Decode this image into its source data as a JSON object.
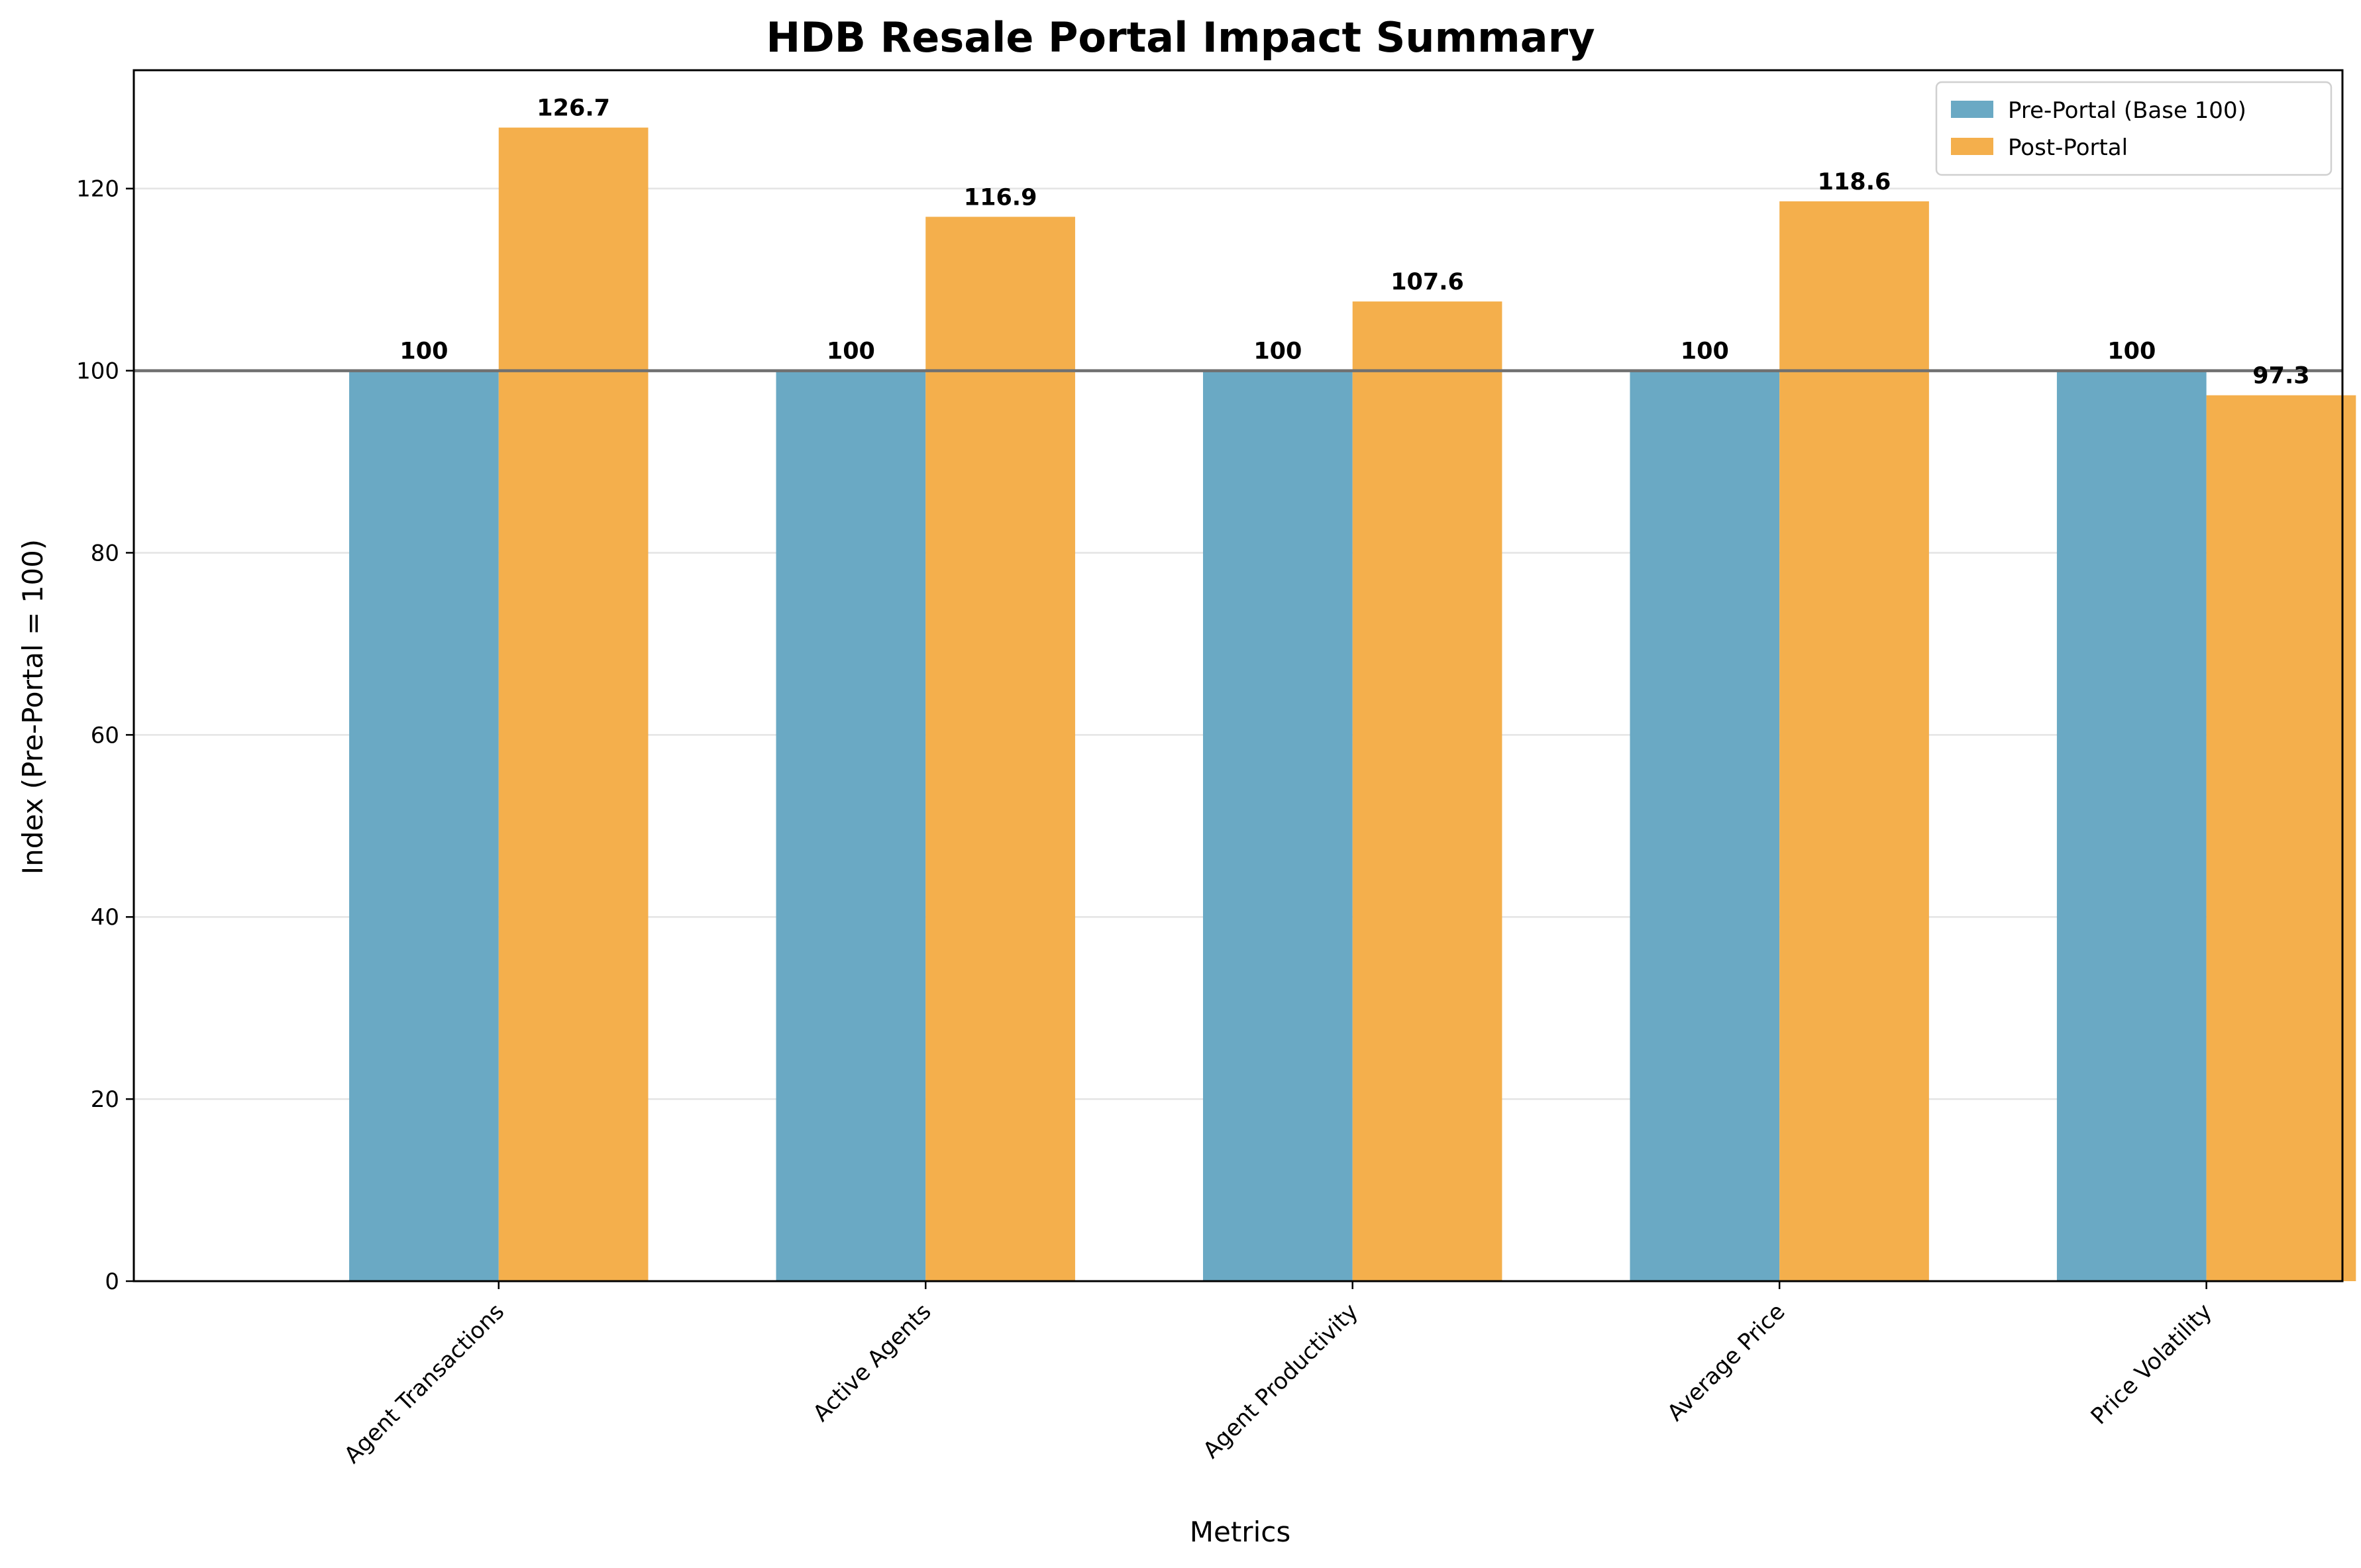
{
  "chart_data": {
    "type": "bar",
    "title": "HDB Resale Portal Impact Summary",
    "xlabel": "Metrics",
    "ylabel": "Index (Pre-Portal = 100)",
    "categories": [
      "Agent Transactions",
      "Active Agents",
      "Agent Productivity",
      "Average Price",
      "Price Volatility"
    ],
    "series": [
      {
        "name": "Pre-Portal (Base 100)",
        "values": [
          100,
          100,
          100,
          100,
          100
        ],
        "labels": [
          "100",
          "100",
          "100",
          "100",
          "100"
        ],
        "color": "#6aa9c4"
      },
      {
        "name": "Post-Portal",
        "values": [
          126.7,
          116.9,
          107.6,
          118.6,
          97.3
        ],
        "labels": [
          "126.7",
          "116.9",
          "107.6",
          "118.6",
          "97.3"
        ],
        "color": "#f4af4c"
      }
    ],
    "ylim": [
      0,
      133
    ],
    "yticks": [
      0,
      20,
      40,
      60,
      80,
      100,
      120
    ],
    "reference_line": 100,
    "reference_line_color": "#707070",
    "grid": "y",
    "legend": "top-right"
  }
}
